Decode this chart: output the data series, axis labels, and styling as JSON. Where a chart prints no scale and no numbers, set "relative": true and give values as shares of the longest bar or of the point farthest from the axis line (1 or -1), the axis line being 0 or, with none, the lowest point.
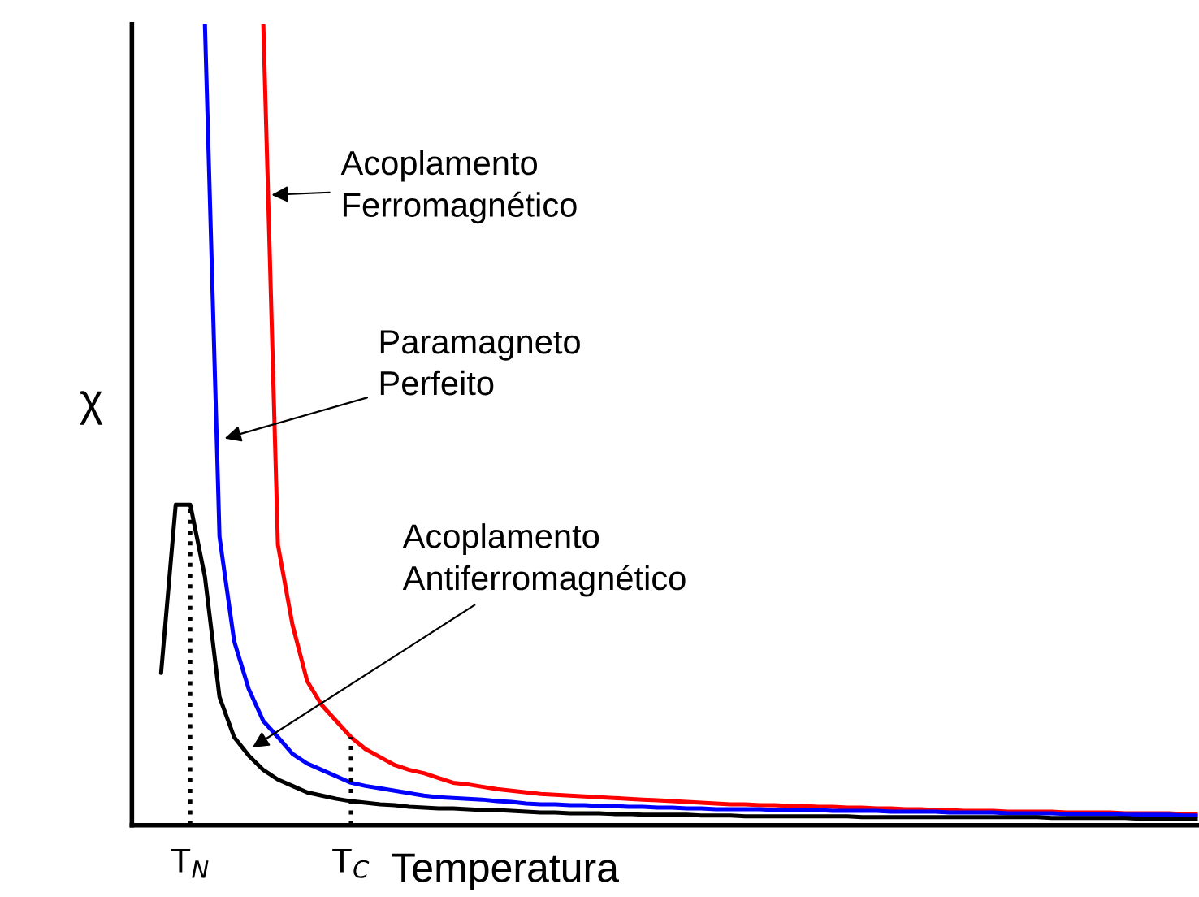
{
  "chart_data": {
    "type": "line",
    "relative": true,
    "xlabel": "Temperatura",
    "ylabel": "χ",
    "categories": [
      null,
      null,
      null,
      null,
      "T$_{N}$",
      null,
      null,
      null,
      null,
      null,
      null,
      null,
      null,
      null,
      null,
      "T$_{C}$",
      null,
      null,
      null,
      null,
      null,
      null,
      null,
      null,
      null,
      null,
      null,
      null,
      null,
      null,
      null,
      null,
      null,
      null,
      null,
      null,
      null,
      null,
      null,
      null,
      null,
      null,
      null,
      null,
      null,
      null,
      null,
      null,
      null,
      null,
      null,
      null,
      null,
      null,
      null,
      null,
      null,
      null,
      null,
      null,
      null,
      null,
      null,
      null,
      null,
      null,
      null,
      null,
      null,
      null,
      null,
      null,
      null,
      null
    ],
    "grid": false,
    "legend": false,
    "marker": "none",
    "line_style": "solid",
    "series": [
      {
        "color": "#ff0000",
        "values": [
          null,
          null,
          null,
          null,
          null,
          null,
          null,
          null,
          null,
          1.0,
          0.35,
          0.25,
          0.18,
          0.15,
          0.13,
          0.11,
          0.095,
          0.085,
          0.075,
          0.069,
          0.065,
          0.059,
          0.053,
          0.051,
          0.048,
          0.045,
          0.043,
          0.041,
          0.039,
          0.038,
          0.037,
          0.036,
          0.035,
          0.034,
          0.033,
          0.032,
          0.031,
          0.03,
          0.029,
          0.028,
          0.027,
          0.026,
          0.026,
          0.025,
          0.025,
          0.024,
          0.024,
          0.023,
          0.023,
          0.022,
          0.022,
          0.021,
          0.021,
          0.02,
          0.02,
          0.019,
          0.019,
          0.018,
          0.018,
          0.018,
          0.017,
          0.017,
          0.017,
          0.017,
          0.016,
          0.016,
          0.016,
          0.016,
          0.015,
          0.015,
          0.015,
          0.015,
          0.014,
          0.014
        ]
      },
      {
        "color": "#0000ff",
        "values": [
          null,
          null,
          null,
          null,
          null,
          1.0,
          0.36,
          0.23,
          0.17,
          0.13,
          0.11,
          0.089,
          0.077,
          0.069,
          0.061,
          0.053,
          0.049,
          0.046,
          0.043,
          0.04,
          0.037,
          0.035,
          0.034,
          0.033,
          0.032,
          0.03,
          0.029,
          0.027,
          0.026,
          0.026,
          0.025,
          0.025,
          0.024,
          0.024,
          0.023,
          0.023,
          0.022,
          0.022,
          0.021,
          0.021,
          0.02,
          0.02,
          0.02,
          0.02,
          0.019,
          0.019,
          0.019,
          0.019,
          0.018,
          0.018,
          0.018,
          0.018,
          0.017,
          0.017,
          0.017,
          0.017,
          0.016,
          0.016,
          0.016,
          0.016,
          0.015,
          0.015,
          0.015,
          0.015,
          0.014,
          0.014,
          0.014,
          0.014,
          0.013,
          0.013,
          0.013,
          0.013,
          0.012,
          0.012
        ]
      },
      {
        "color": "#000000",
        "values": [
          null,
          null,
          0.19,
          0.4,
          0.4,
          0.31,
          0.16,
          0.11,
          0.087,
          0.069,
          0.057,
          0.049,
          0.041,
          0.037,
          0.033,
          0.03,
          0.028,
          0.026,
          0.025,
          0.023,
          0.022,
          0.021,
          0.021,
          0.02,
          0.019,
          0.019,
          0.018,
          0.017,
          0.016,
          0.016,
          0.015,
          0.015,
          0.015,
          0.014,
          0.014,
          0.013,
          0.013,
          0.013,
          0.013,
          0.012,
          0.012,
          0.012,
          0.011,
          0.011,
          0.011,
          0.011,
          0.011,
          0.011,
          0.011,
          0.011,
          0.01,
          0.01,
          0.01,
          0.01,
          0.01,
          0.01,
          0.01,
          0.01,
          0.01,
          0.01,
          0.01,
          0.01,
          0.01,
          0.009,
          0.009,
          0.009,
          0.009,
          0.009,
          0.009,
          0.008,
          0.008,
          0.008,
          0.008,
          0.008
        ]
      }
    ],
    "ref_lines": [
      {
        "axis": "x",
        "value": "T$_{N}$",
        "color": "#000000",
        "line_style": "dotted"
      },
      {
        "axis": "x",
        "value": "T$_{C}$",
        "color": "#000000",
        "line_style": "dotted"
      }
    ],
    "annotations": [
      "Acoplamento\nFerromagnético",
      "Paramagneto\nPerfeito",
      "Acoplamento\nAntiferromagnético"
    ]
  }
}
